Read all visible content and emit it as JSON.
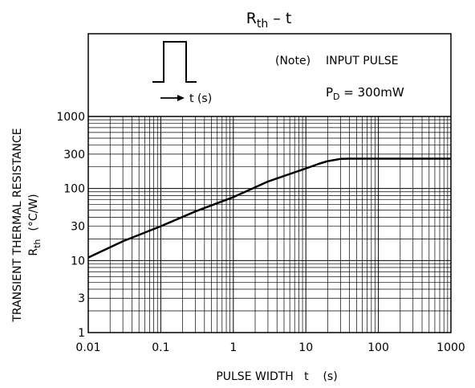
{
  "chart_data": {
    "type": "line",
    "title": {
      "main": "R",
      "sub": "th",
      "suffix": "  –  t"
    },
    "xlabel": "PULSE WIDTH   t    (s)",
    "ylabel": {
      "line1": "TRANSIENT THERMAL RESISTANCE",
      "line2_main": "R",
      "line2_sub": "th",
      "line2_unit": "(°C/W)"
    },
    "x_scale": "log",
    "y_scale": "log",
    "xlim": [
      0.01,
      1000
    ],
    "ylim": [
      1,
      1000
    ],
    "x_ticks": [
      {
        "value": 0.01,
        "label": "0.01"
      },
      {
        "value": 0.1,
        "label": "0.1"
      },
      {
        "value": 1,
        "label": "1"
      },
      {
        "value": 10,
        "label": "10"
      },
      {
        "value": 100,
        "label": "100"
      },
      {
        "value": 1000,
        "label": "1000"
      }
    ],
    "y_ticks": [
      {
        "value": 1,
        "label": "1"
      },
      {
        "value": 3,
        "label": "3"
      },
      {
        "value": 10,
        "label": "10"
      },
      {
        "value": 30,
        "label": "30"
      },
      {
        "value": 100,
        "label": "100"
      },
      {
        "value": 300,
        "label": "300"
      },
      {
        "value": 1000,
        "label": "1000"
      }
    ],
    "grid": true,
    "series": [
      {
        "x": [
          0.01,
          0.03,
          0.1,
          0.3,
          1,
          3,
          10,
          15,
          20,
          30,
          40,
          60,
          100,
          300,
          1000
        ],
        "y": [
          11,
          18.5,
          30,
          48,
          76,
          125,
          190,
          220,
          240,
          258,
          260,
          260,
          260,
          260,
          260
        ]
      }
    ],
    "annotations": {
      "note": "(Note)",
      "note_text": "INPUT PULSE",
      "pd_main": "P",
      "pd_sub": "D",
      "pd_value": " = 300mW",
      "pulse_axis_label": "t (s)"
    }
  }
}
